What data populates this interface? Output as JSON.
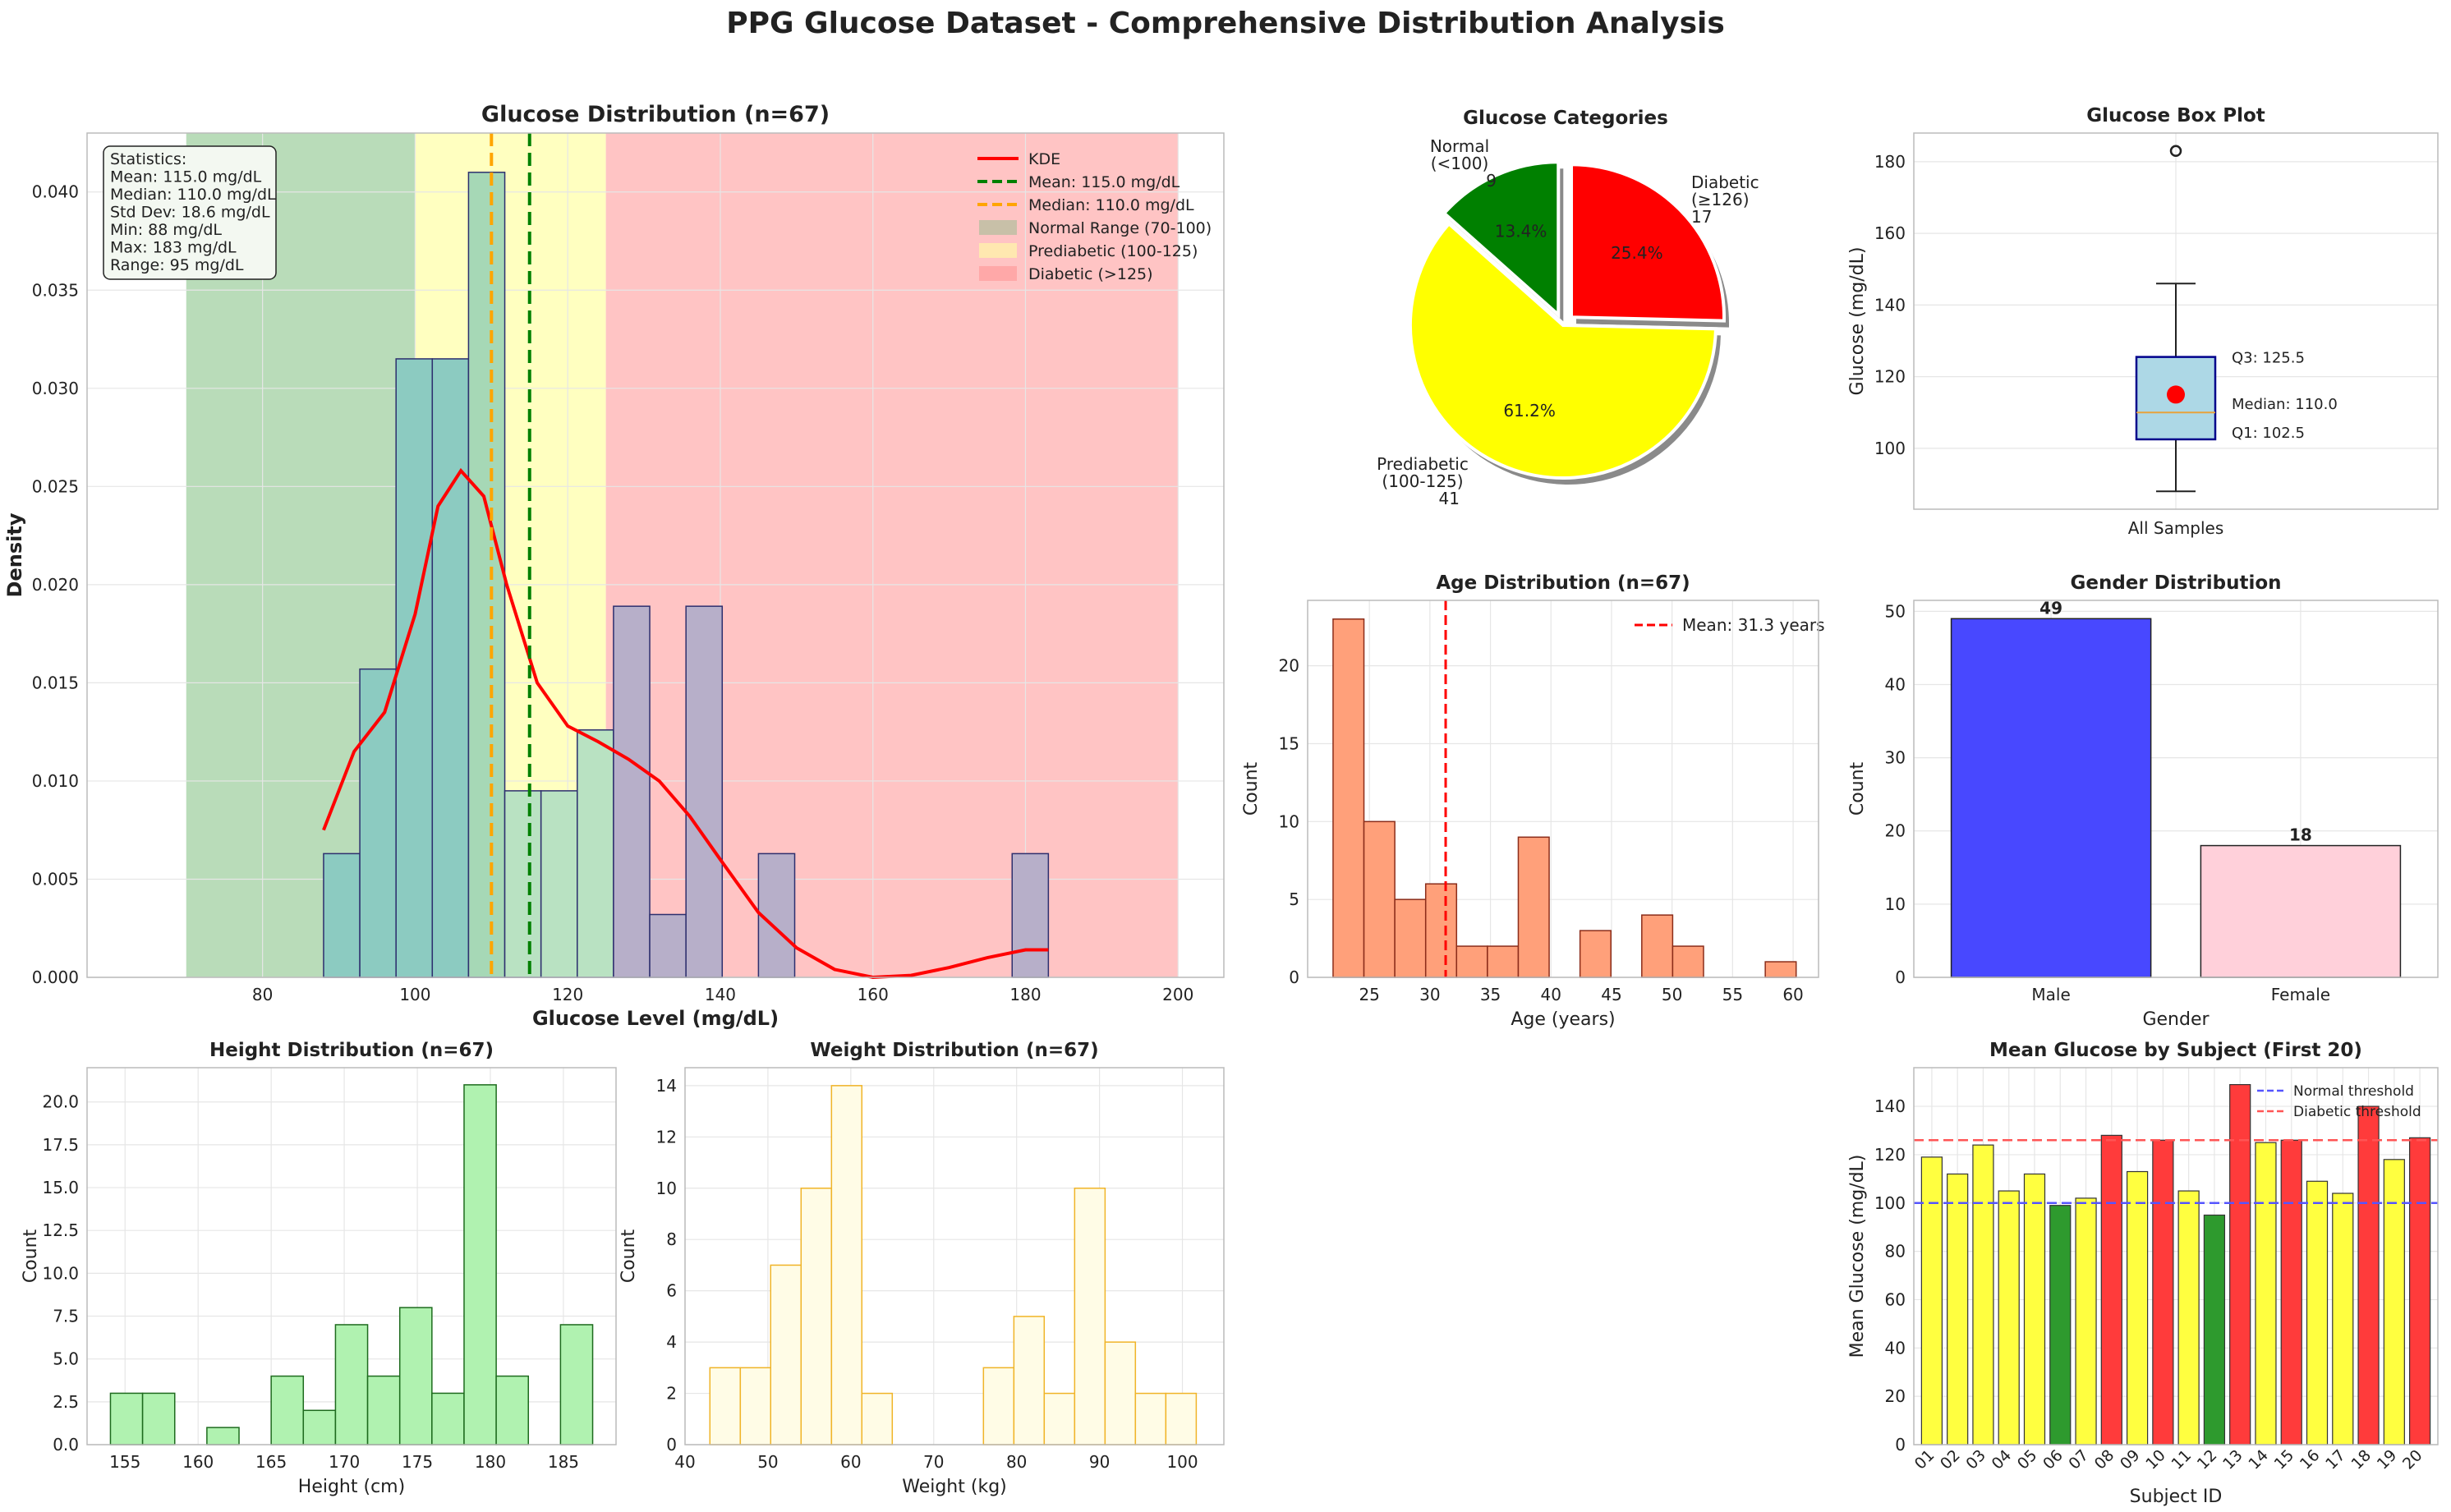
{
  "figure": {
    "title": "PPG Glucose Dataset - Comprehensive Distribution Analysis",
    "colors": {
      "normal": "#008000",
      "prediabetic": "#ffff00",
      "diabetic": "#ff0000",
      "kde": "#ff0000",
      "mean": "#008000",
      "median": "#ffa500",
      "grid": "#e6e6e6"
    }
  },
  "chart_data": [
    {
      "id": "glucose_hist",
      "type": "bar",
      "title": "Glucose Distribution (n=67)",
      "xlabel": "Glucose Level (mg/dL)",
      "ylabel": "Density",
      "xlim": [
        57,
        206
      ],
      "ylim": [
        0,
        0.043
      ],
      "xticks": [
        80,
        100,
        120,
        140,
        160,
        180,
        200
      ],
      "yticks": [
        0.0,
        0.005,
        0.01,
        0.015,
        0.02,
        0.025,
        0.03,
        0.035,
        0.04
      ],
      "ytick_labels": [
        "0.000",
        "0.005",
        "0.010",
        "0.015",
        "0.020",
        "0.025",
        "0.030",
        "0.035",
        "0.040"
      ],
      "ranges": [
        {
          "label": "Normal Range (70-100)",
          "from": 70,
          "to": 100,
          "color": "#b9dcb9"
        },
        {
          "label": "Prediabetic (100-125)",
          "from": 100,
          "to": 125,
          "color": "#ffffc0"
        },
        {
          "label": "Diabetic (>125)",
          "from": 125,
          "to": 200,
          "color": "#ffc4c4"
        }
      ],
      "bins": [
        {
          "x0": 88.0,
          "x1": 92.75,
          "density": 0.0063,
          "color": "#8ccbc1"
        },
        {
          "x0": 92.75,
          "x1": 97.5,
          "density": 0.0157,
          "color": "#8ccbc1"
        },
        {
          "x0": 97.5,
          "x1": 102.25,
          "density": 0.0315,
          "color": "#8ccbc1"
        },
        {
          "x0": 102.25,
          "x1": 107.0,
          "density": 0.0315,
          "color": "#8ccbc1"
        },
        {
          "x0": 107.0,
          "x1": 111.75,
          "density": 0.041,
          "color": "#a6d8b6"
        },
        {
          "x0": 111.75,
          "x1": 116.5,
          "density": 0.0095,
          "color": "#b9e2c2"
        },
        {
          "x0": 116.5,
          "x1": 121.25,
          "density": 0.0095,
          "color": "#b9e2c2"
        },
        {
          "x0": 121.25,
          "x1": 126.0,
          "density": 0.0126,
          "color": "#b9e2c2"
        },
        {
          "x0": 126.0,
          "x1": 130.75,
          "density": 0.0189,
          "color": "#b7afc9"
        },
        {
          "x0": 130.75,
          "x1": 135.5,
          "density": 0.0032,
          "color": "#b7afc9"
        },
        {
          "x0": 135.5,
          "x1": 140.25,
          "density": 0.0189,
          "color": "#b7afc9"
        },
        {
          "x0": 145.0,
          "x1": 149.75,
          "density": 0.0063,
          "color": "#b7afc9"
        },
        {
          "x0": 178.25,
          "x1": 183.0,
          "density": 0.0063,
          "color": "#b7afc9"
        }
      ],
      "kde": {
        "label": "KDE",
        "x": [
          88,
          92,
          96,
          100,
          103,
          106,
          109,
          112,
          116,
          120,
          124,
          128,
          132,
          136,
          140,
          145,
          150,
          155,
          160,
          165,
          170,
          175,
          180,
          183
        ],
        "y": [
          0.0075,
          0.0115,
          0.0135,
          0.0185,
          0.024,
          0.0258,
          0.0245,
          0.02,
          0.015,
          0.0128,
          0.012,
          0.0111,
          0.01,
          0.0082,
          0.006,
          0.0033,
          0.0015,
          0.0004,
          0.0,
          0.0001,
          0.0005,
          0.001,
          0.0014,
          0.0014
        ]
      },
      "mean": {
        "value": 115.0,
        "label": "Mean: 115.0 mg/dL"
      },
      "median": {
        "value": 110.0,
        "label": "Median: 110.0 mg/dL"
      },
      "stats_box": [
        "Statistics:",
        "Mean: 115.0 mg/dL",
        "Median: 110.0 mg/dL",
        "Std Dev: 18.6 mg/dL",
        "Min: 88 mg/dL",
        "Max: 183 mg/dL",
        "Range: 95 mg/dL"
      ],
      "legend_position": "top-right"
    },
    {
      "id": "categories_pie",
      "type": "pie",
      "title": "Glucose Categories",
      "slices": [
        {
          "label": "Diabetic\n(≥126)\n17",
          "value": 17,
          "pct": "25.4%",
          "color": "#ff0000",
          "explode": true
        },
        {
          "label": "Prediabetic\n(100-125)\n41",
          "value": 41,
          "pct": "61.2%",
          "color": "#ffff00",
          "explode": false
        },
        {
          "label": "Normal\n(<100)\n9",
          "value": 9,
          "pct": "13.4%",
          "color": "#008000",
          "explode": true
        }
      ]
    },
    {
      "id": "glucose_box",
      "type": "box",
      "title": "Glucose Box Plot",
      "ylabel": "Glucose (mg/dL)",
      "xlabel_category": "All Samples",
      "ylim": [
        83,
        188
      ],
      "yticks": [
        100,
        120,
        140,
        160,
        180
      ],
      "q1": 102.5,
      "median": 110.0,
      "q3": 125.5,
      "whisker_low": 88,
      "whisker_high": 146,
      "mean": 115.0,
      "outliers": [
        183
      ],
      "labels": {
        "q3": "Q3: 125.5",
        "median": "Median: 110.0",
        "q1": "Q1: 102.5"
      }
    },
    {
      "id": "age_hist",
      "type": "bar",
      "title": "Age Distribution (n=67)",
      "xlabel": "Age (years)",
      "ylabel": "Count",
      "xlim": [
        19.9,
        62.1
      ],
      "ylim": [
        0,
        24.2
      ],
      "xticks": [
        25,
        30,
        35,
        40,
        45,
        50,
        55,
        60
      ],
      "yticks": [
        0,
        5,
        10,
        15,
        20
      ],
      "bin_edges": [
        22,
        24.55,
        27.1,
        29.65,
        32.2,
        34.75,
        37.3,
        39.85,
        42.4,
        44.95,
        47.5,
        50.05,
        52.6,
        55.15,
        57.7,
        60.25
      ],
      "counts": [
        23,
        10,
        5,
        6,
        2,
        2,
        9,
        0,
        3,
        0,
        4,
        2,
        0,
        0,
        1
      ],
      "mean": {
        "value": 31.3,
        "label": "Mean: 31.3 years"
      }
    },
    {
      "id": "gender_bar",
      "type": "bar",
      "title": "Gender Distribution",
      "xlabel": "Gender",
      "ylabel": "Count",
      "ylim": [
        0,
        51.5
      ],
      "yticks": [
        0,
        10,
        20,
        30,
        40,
        50
      ],
      "categories": [
        "Male",
        "Female"
      ],
      "values": [
        49,
        18
      ],
      "value_labels": [
        "49",
        "18"
      ],
      "colors": [
        "#4848ff",
        "#ffd0da"
      ]
    },
    {
      "id": "height_hist",
      "type": "bar",
      "title": "Height Distribution (n=67)",
      "xlabel": "Height (cm)",
      "ylabel": "Count",
      "xlim": [
        152.4,
        188.6
      ],
      "ylim": [
        0,
        22
      ],
      "xticks": [
        155,
        160,
        165,
        170,
        175,
        180,
        185
      ],
      "yticks": [
        0.0,
        2.5,
        5.0,
        7.5,
        10.0,
        12.5,
        15.0,
        17.5,
        20.0
      ],
      "ytick_labels": [
        "0.0",
        "2.5",
        "5.0",
        "7.5",
        "10.0",
        "12.5",
        "15.0",
        "17.5",
        "20.0"
      ],
      "bin_edges": [
        154,
        156.2,
        158.4,
        160.6,
        162.8,
        165.0,
        167.2,
        169.4,
        171.6,
        173.8,
        176.0,
        178.2,
        180.4,
        182.6,
        184.8,
        187.0
      ],
      "counts": [
        3,
        3,
        0,
        1,
        0,
        4,
        2,
        7,
        4,
        8,
        3,
        21,
        4,
        0,
        7
      ]
    },
    {
      "id": "weight_hist",
      "type": "bar",
      "title": "Weight Distribution (n=67)",
      "xlabel": "Weight (kg)",
      "ylabel": "Count",
      "xlim": [
        40,
        105
      ],
      "ylim": [
        0,
        14.7
      ],
      "xticks": [
        40,
        50,
        60,
        70,
        80,
        90,
        100
      ],
      "yticks": [
        0,
        2,
        4,
        6,
        8,
        10,
        12,
        14
      ],
      "bin_edges": [
        43,
        46.67,
        50.33,
        54,
        57.67,
        61.33,
        65,
        68.67,
        72.33,
        76,
        79.67,
        83.33,
        87,
        90.67,
        94.33,
        98,
        101.67
      ],
      "counts": [
        3,
        3,
        7,
        10,
        14,
        2,
        0,
        0,
        0,
        3,
        5,
        2,
        10,
        4,
        2,
        2
      ]
    },
    {
      "id": "subject_mean_bar",
      "type": "bar",
      "title": "Mean Glucose by Subject (First 20)",
      "xlabel": "Subject ID",
      "ylabel": "Mean Glucose (mg/dL)",
      "ylim": [
        0,
        156
      ],
      "yticks": [
        0,
        20,
        40,
        60,
        80,
        100,
        120,
        140
      ],
      "categories": [
        "01",
        "02",
        "03",
        "04",
        "05",
        "06",
        "07",
        "08",
        "09",
        "10",
        "11",
        "12",
        "13",
        "14",
        "15",
        "16",
        "17",
        "18",
        "19",
        "20"
      ],
      "values": [
        119,
        112,
        124,
        105,
        112,
        99,
        102,
        128,
        113,
        126,
        105,
        95,
        149,
        125,
        126,
        109,
        104,
        140,
        118,
        127
      ],
      "thresholds": [
        {
          "label": "Normal threshold",
          "value": 100,
          "color": "#5555ff"
        },
        {
          "label": "Diabetic threshold",
          "value": 126,
          "color": "#ff5555"
        }
      ]
    }
  ]
}
